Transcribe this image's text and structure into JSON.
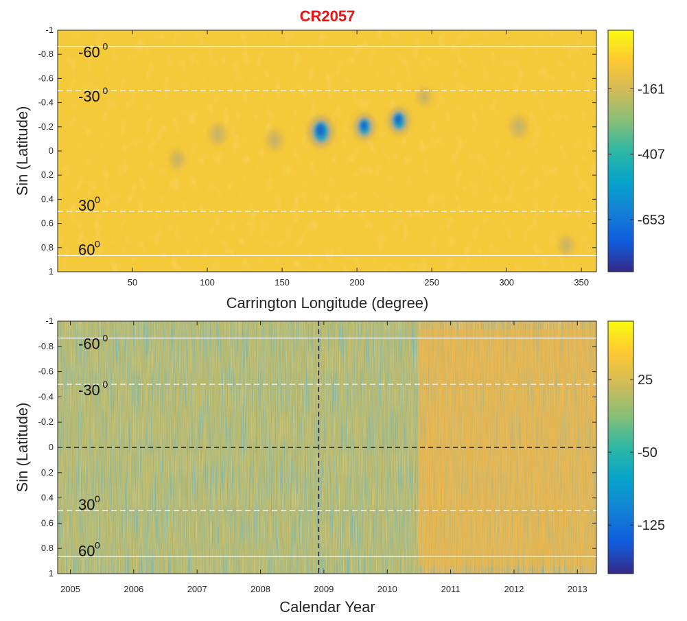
{
  "chart_data": [
    {
      "type": "heatmap",
      "title": "CR2057",
      "xlabel": "Carrington Longitude (degree)",
      "ylabel": "Sin (Latitude)",
      "xlim": [
        0,
        360
      ],
      "ylim": [
        -1,
        1
      ],
      "y_reversed": true,
      "xticks": [
        "50",
        "100",
        "150",
        "200",
        "250",
        "300",
        "350"
      ],
      "xtick_values": [
        50,
        100,
        150,
        200,
        250,
        300,
        350
      ],
      "yticks": [
        "-1",
        "-0.8",
        "-0.6",
        "-0.4",
        "-0.2",
        "0",
        "0.2",
        "0.4",
        "0.6",
        "0.8",
        "1"
      ],
      "ytick_values": [
        -1,
        -0.8,
        -0.6,
        -0.4,
        -0.2,
        0,
        0.2,
        0.4,
        0.6,
        0.8,
        1
      ],
      "colorbar": {
        "ticks": [
          "-161",
          "-407",
          "-653"
        ],
        "tick_values": [
          -161,
          -407,
          -653
        ],
        "range": [
          -850,
          60
        ],
        "colors": [
          "#352a87",
          "#0f5cdd",
          "#1481d6",
          "#06a4ca",
          "#2eb7a4",
          "#87bf77",
          "#d1bb59",
          "#fec832",
          "#f9fb0e"
        ]
      },
      "annotations": [
        {
          "label": "-60",
          "sup": "0",
          "y": -0.866,
          "line": "solid"
        },
        {
          "label": "-30",
          "sup": "0",
          "y": -0.5,
          "line": "dashed"
        },
        {
          "label": "30",
          "sup": "0",
          "y": 0.5,
          "line": "dashed"
        },
        {
          "label": "60",
          "sup": "0",
          "y": 0.866,
          "line": "solid"
        }
      ],
      "features": [
        {
          "x": 176,
          "y": -0.16,
          "strength": 1.0
        },
        {
          "x": 205,
          "y": -0.2,
          "strength": 0.7
        },
        {
          "x": 228,
          "y": -0.25,
          "strength": 0.75
        },
        {
          "x": 107,
          "y": -0.14,
          "strength": 0.3
        },
        {
          "x": 145,
          "y": -0.09,
          "strength": 0.3
        },
        {
          "x": 308,
          "y": -0.2,
          "strength": 0.35
        },
        {
          "x": 340,
          "y": 0.78,
          "strength": 0.2
        },
        {
          "x": 80,
          "y": 0.07,
          "strength": 0.2
        },
        {
          "x": 245,
          "y": -0.45,
          "strength": 0.15
        }
      ]
    },
    {
      "type": "heatmap",
      "title": "",
      "xlabel": "Calendar Year",
      "ylabel": "Sin (Latitude)",
      "xlim": [
        2004.8,
        2013.3
      ],
      "ylim": [
        -1,
        1
      ],
      "y_reversed": true,
      "xticks": [
        "2005",
        "2006",
        "2007",
        "2008",
        "2009",
        "2010",
        "2011",
        "2012",
        "2013"
      ],
      "xtick_values": [
        2005,
        2006,
        2007,
        2008,
        2009,
        2010,
        2011,
        2012,
        2013
      ],
      "yticks": [
        "-1",
        "-0.8",
        "-0.6",
        "-0.4",
        "-0.2",
        "0",
        "0.2",
        "0.4",
        "0.6",
        "0.8",
        "1"
      ],
      "ytick_values": [
        -1,
        -0.8,
        -0.6,
        -0.4,
        -0.2,
        0,
        0.2,
        0.4,
        0.6,
        0.8,
        1
      ],
      "colorbar": {
        "ticks": [
          "25",
          "-50",
          "-125"
        ],
        "tick_values": [
          25,
          -50,
          -125
        ],
        "range": [
          -175,
          85
        ],
        "colors": [
          "#352a87",
          "#0f5cdd",
          "#1481d6",
          "#06a4ca",
          "#2eb7a4",
          "#87bf77",
          "#d1bb59",
          "#fec832",
          "#f9fb0e"
        ]
      },
      "annotations": [
        {
          "label": "-60",
          "sup": "0",
          "y": -0.866,
          "line": "solid"
        },
        {
          "label": "-30",
          "sup": "0",
          "y": -0.5,
          "line": "dashed"
        },
        {
          "label": "30",
          "sup": "0",
          "y": 0.5,
          "line": "dashed"
        },
        {
          "label": "60",
          "sup": "0",
          "y": 0.866,
          "line": "solid"
        }
      ],
      "reference_lines": [
        {
          "orientation": "horizontal",
          "value": 0,
          "style": "dashed",
          "color": "#000000"
        },
        {
          "orientation": "vertical",
          "value": 2008.92,
          "style": "dashed",
          "color": "#000000"
        }
      ]
    }
  ]
}
